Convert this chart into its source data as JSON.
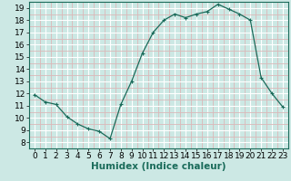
{
  "x": [
    0,
    1,
    2,
    3,
    4,
    5,
    6,
    7,
    8,
    9,
    10,
    11,
    12,
    13,
    14,
    15,
    16,
    17,
    18,
    19,
    20,
    21,
    22,
    23
  ],
  "y": [
    11.9,
    11.3,
    11.1,
    10.1,
    9.5,
    9.1,
    8.9,
    8.3,
    11.1,
    13.0,
    15.3,
    17.0,
    18.0,
    18.5,
    18.2,
    18.5,
    18.7,
    19.3,
    18.9,
    18.5,
    18.0,
    13.3,
    12.0,
    10.9
  ],
  "line_color": "#1a6b5a",
  "marker": "+",
  "marker_size": 3,
  "bg_color": "#cce8e4",
  "grid_major_color": "#ffffff",
  "grid_minor_color": "#dbb8b8",
  "xlabel": "Humidex (Indice chaleur)",
  "ylim": [
    7.5,
    19.5
  ],
  "xlim": [
    -0.5,
    23.5
  ],
  "xticks": [
    0,
    1,
    2,
    3,
    4,
    5,
    6,
    7,
    8,
    9,
    10,
    11,
    12,
    13,
    14,
    15,
    16,
    17,
    18,
    19,
    20,
    21,
    22,
    23
  ],
  "yticks": [
    8,
    9,
    10,
    11,
    12,
    13,
    14,
    15,
    16,
    17,
    18,
    19
  ],
  "tick_labelsize": 6.5,
  "xlabel_fontsize": 7.5
}
